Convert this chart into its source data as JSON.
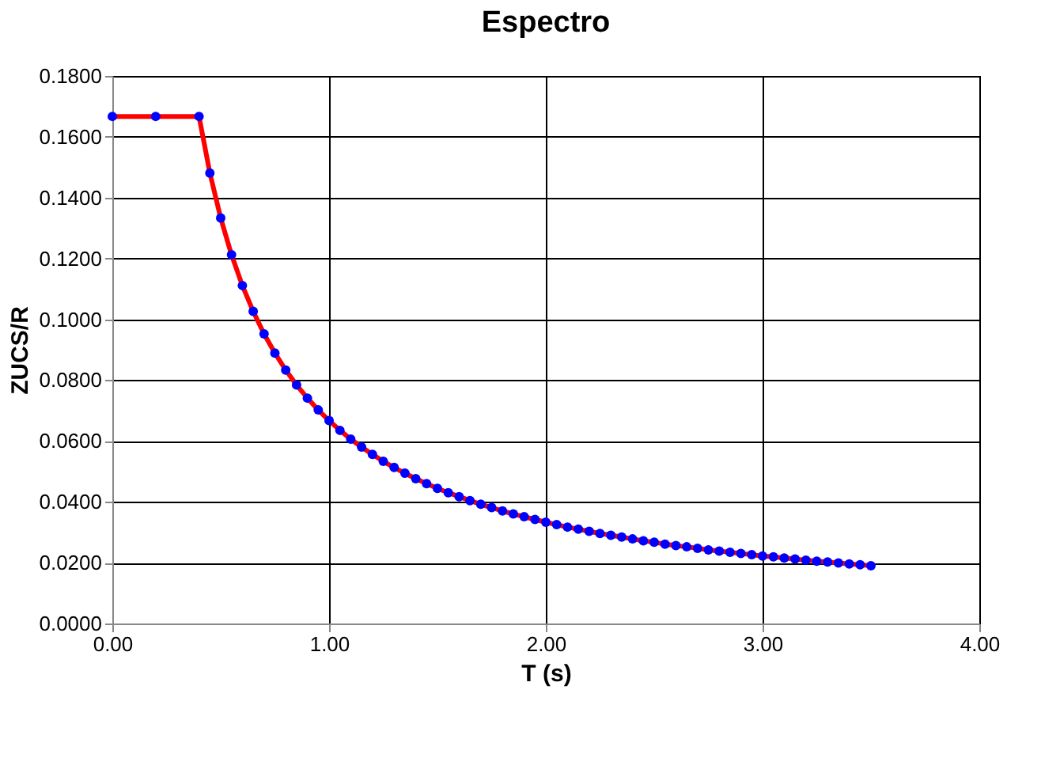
{
  "chart_data": {
    "type": "line",
    "title": "Espectro",
    "xlabel": "T (s)",
    "ylabel": "ZUCS/R",
    "x": [
      0,
      0.2,
      0.4,
      0.45,
      0.5,
      0.55,
      0.6,
      0.65,
      0.7,
      0.75,
      0.8,
      0.85,
      0.9,
      0.95,
      1.0,
      1.05,
      1.1,
      1.15,
      1.2,
      1.25,
      1.3,
      1.35,
      1.4,
      1.45,
      1.5,
      1.55,
      1.6,
      1.65,
      1.7,
      1.75,
      1.8,
      1.85,
      1.9,
      1.95,
      2.0,
      2.05,
      2.1,
      2.15,
      2.2,
      2.25,
      2.3,
      2.35,
      2.4,
      2.45,
      2.5,
      2.55,
      2.6,
      2.65,
      2.7,
      2.75,
      2.8,
      2.85,
      2.9,
      2.95,
      3.0,
      3.05,
      3.1,
      3.15,
      3.2,
      3.25,
      3.3,
      3.35,
      3.4,
      3.45,
      3.5
    ],
    "series": [
      {
        "color": "#ff0000",
        "marker": "none",
        "line_style": "solid",
        "values": [
          0.1667,
          0.1667,
          0.1667,
          0.1481,
          0.1333,
          0.1212,
          0.1111,
          0.1026,
          0.0952,
          0.0889,
          0.0833,
          0.0784,
          0.0741,
          0.0702,
          0.0667,
          0.0635,
          0.0606,
          0.058,
          0.0556,
          0.0533,
          0.0513,
          0.0494,
          0.0476,
          0.046,
          0.0444,
          0.043,
          0.0417,
          0.0404,
          0.0392,
          0.0381,
          0.037,
          0.036,
          0.0351,
          0.0342,
          0.0333,
          0.0325,
          0.0317,
          0.031,
          0.0303,
          0.0296,
          0.029,
          0.0284,
          0.0278,
          0.0272,
          0.0267,
          0.0261,
          0.0256,
          0.0252,
          0.0247,
          0.0242,
          0.0238,
          0.0234,
          0.023,
          0.0226,
          0.0222,
          0.0219,
          0.0215,
          0.0212,
          0.0208,
          0.0205,
          0.0202,
          0.0199,
          0.0196,
          0.0193,
          0.019
        ]
      },
      {
        "type": "scatter",
        "color": "#0000ff",
        "marker": "circle",
        "values": [
          0.1667,
          0.1667,
          0.1667,
          0.1481,
          0.1333,
          0.1212,
          0.1111,
          0.1026,
          0.0952,
          0.0889,
          0.0833,
          0.0784,
          0.0741,
          0.0702,
          0.0667,
          0.0635,
          0.0606,
          0.058,
          0.0556,
          0.0533,
          0.0513,
          0.0494,
          0.0476,
          0.046,
          0.0444,
          0.043,
          0.0417,
          0.0404,
          0.0392,
          0.0381,
          0.037,
          0.036,
          0.0351,
          0.0342,
          0.0333,
          0.0325,
          0.0317,
          0.031,
          0.0303,
          0.0296,
          0.029,
          0.0284,
          0.0278,
          0.0272,
          0.0267,
          0.0261,
          0.0256,
          0.0252,
          0.0247,
          0.0242,
          0.0238,
          0.0234,
          0.023,
          0.0226,
          0.0222,
          0.0219,
          0.0215,
          0.0212,
          0.0208,
          0.0205,
          0.0202,
          0.0199,
          0.0196,
          0.0193,
          0.019
        ]
      }
    ],
    "xlim": [
      0,
      4
    ],
    "xticks": [
      {
        "value": 0,
        "label": "0.00"
      },
      {
        "value": 1,
        "label": "1.00"
      },
      {
        "value": 2,
        "label": "2.00"
      },
      {
        "value": 3,
        "label": "3.00"
      },
      {
        "value": 4,
        "label": "4.00"
      }
    ],
    "ylim": [
      0,
      0.18
    ],
    "yticks": [
      {
        "value": 0,
        "label": "0.0000"
      },
      {
        "value": 0.02,
        "label": "0.0200"
      },
      {
        "value": 0.04,
        "label": "0.0400"
      },
      {
        "value": 0.06,
        "label": "0.0600"
      },
      {
        "value": 0.08,
        "label": "0.0800"
      },
      {
        "value": 0.1,
        "label": "0.1000"
      },
      {
        "value": 0.12,
        "label": "0.1200"
      },
      {
        "value": 0.14,
        "label": "0.1400"
      },
      {
        "value": 0.16,
        "label": "0.1600"
      },
      {
        "value": 0.18,
        "label": "0.1800"
      }
    ],
    "grid": true
  }
}
